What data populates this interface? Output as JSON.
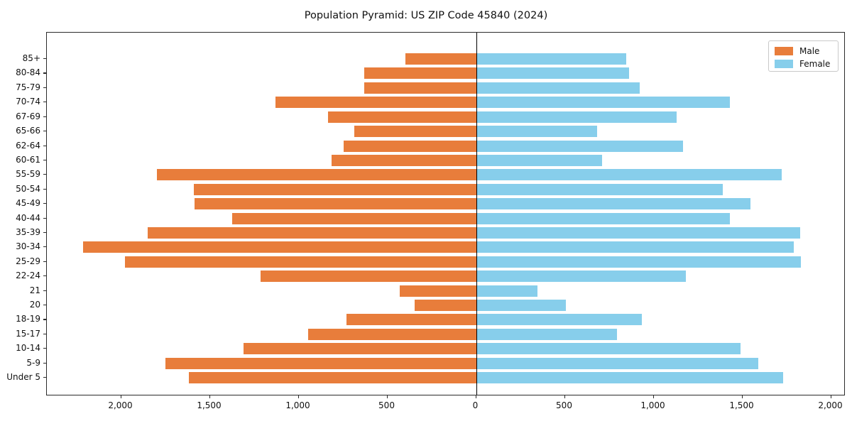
{
  "title": "Population Pyramid: US ZIP Code 45840 (2024)",
  "legend": {
    "male_label": "Male",
    "female_label": "Female"
  },
  "colors": {
    "male": "#e87d3b",
    "female": "#87ceeb",
    "axis": "#2b2b2b",
    "zero_line": "#000000"
  },
  "chart_data": {
    "type": "bar",
    "subtype": "population-pyramid",
    "title": "Population Pyramid: US ZIP Code 45840 (2024)",
    "categories": [
      "85+",
      "80-84",
      "75-79",
      "70-74",
      "67-69",
      "65-66",
      "62-64",
      "60-61",
      "55-59",
      "50-54",
      "45-49",
      "40-44",
      "35-39",
      "30-34",
      "25-29",
      "22-24",
      "21",
      "20",
      "18-19",
      "15-17",
      "10-14",
      "5-9",
      "Under 5"
    ],
    "series": [
      {
        "name": "Male",
        "side": "left",
        "color": "#e87d3b",
        "values": [
          400,
          630,
          630,
          1130,
          835,
          685,
          745,
          815,
          1800,
          1590,
          1585,
          1375,
          1850,
          2215,
          1980,
          1215,
          430,
          345,
          730,
          945,
          1310,
          1750,
          1620
        ]
      },
      {
        "name": "Female",
        "side": "right",
        "color": "#87ceeb",
        "values": [
          845,
          860,
          920,
          1430,
          1130,
          680,
          1165,
          710,
          1720,
          1390,
          1545,
          1430,
          1825,
          1790,
          1830,
          1180,
          345,
          505,
          935,
          795,
          1490,
          1590,
          1730
        ]
      }
    ],
    "x_tick_values": [
      -2000,
      -1500,
      -1000,
      -500,
      0,
      500,
      1000,
      1500,
      2000
    ],
    "x_tick_labels": [
      "2,000",
      "1,500",
      "1,000",
      "500",
      "0",
      "500",
      "1,000",
      "1,500",
      "2,000"
    ],
    "xlim": [
      -2420,
      2080
    ],
    "grid": false,
    "legend_position": "upper right"
  }
}
